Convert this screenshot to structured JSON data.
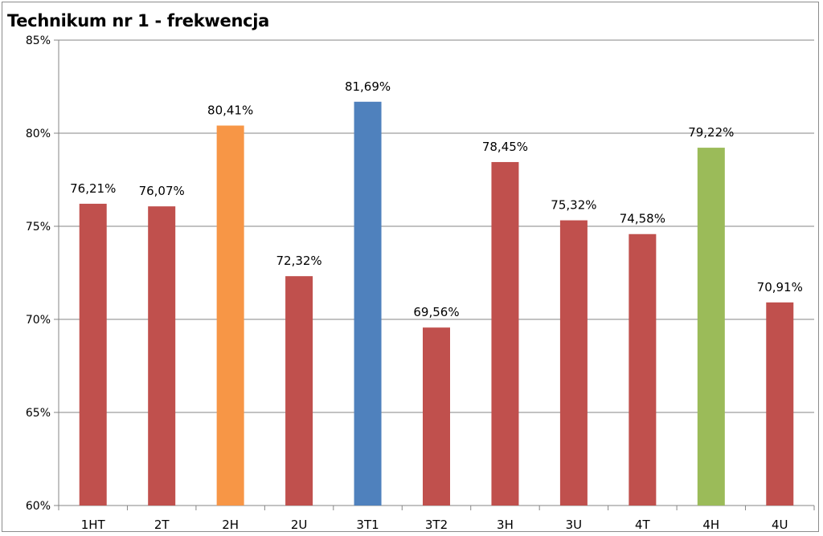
{
  "chart_data": {
    "type": "bar",
    "title": "Technikum nr 1 - frekwencja",
    "xlabel": "",
    "ylabel": "",
    "ylim": [
      60,
      85
    ],
    "yticks": [
      60,
      65,
      70,
      75,
      80,
      85
    ],
    "ytick_labels": [
      "60%",
      "65%",
      "70%",
      "75%",
      "80%",
      "85%"
    ],
    "grid": true,
    "legend": "none",
    "categories": [
      "1HT",
      "2T",
      "2H",
      "2U",
      "3T1",
      "3T2",
      "3H",
      "3U",
      "4T",
      "4H",
      "4U"
    ],
    "values": [
      76.21,
      76.07,
      80.41,
      72.32,
      81.69,
      69.56,
      78.45,
      75.32,
      74.58,
      79.22,
      70.91
    ],
    "data_labels": [
      "76,21%",
      "76,07%",
      "80,41%",
      "72,32%",
      "81,69%",
      "69,56%",
      "78,45%",
      "75,32%",
      "74,58%",
      "79,22%",
      "70,91%"
    ],
    "colors": [
      "#c0504d",
      "#c0504d",
      "#f79646",
      "#c0504d",
      "#4f81bd",
      "#c0504d",
      "#c0504d",
      "#c0504d",
      "#c0504d",
      "#9bbb59",
      "#c0504d"
    ]
  }
}
